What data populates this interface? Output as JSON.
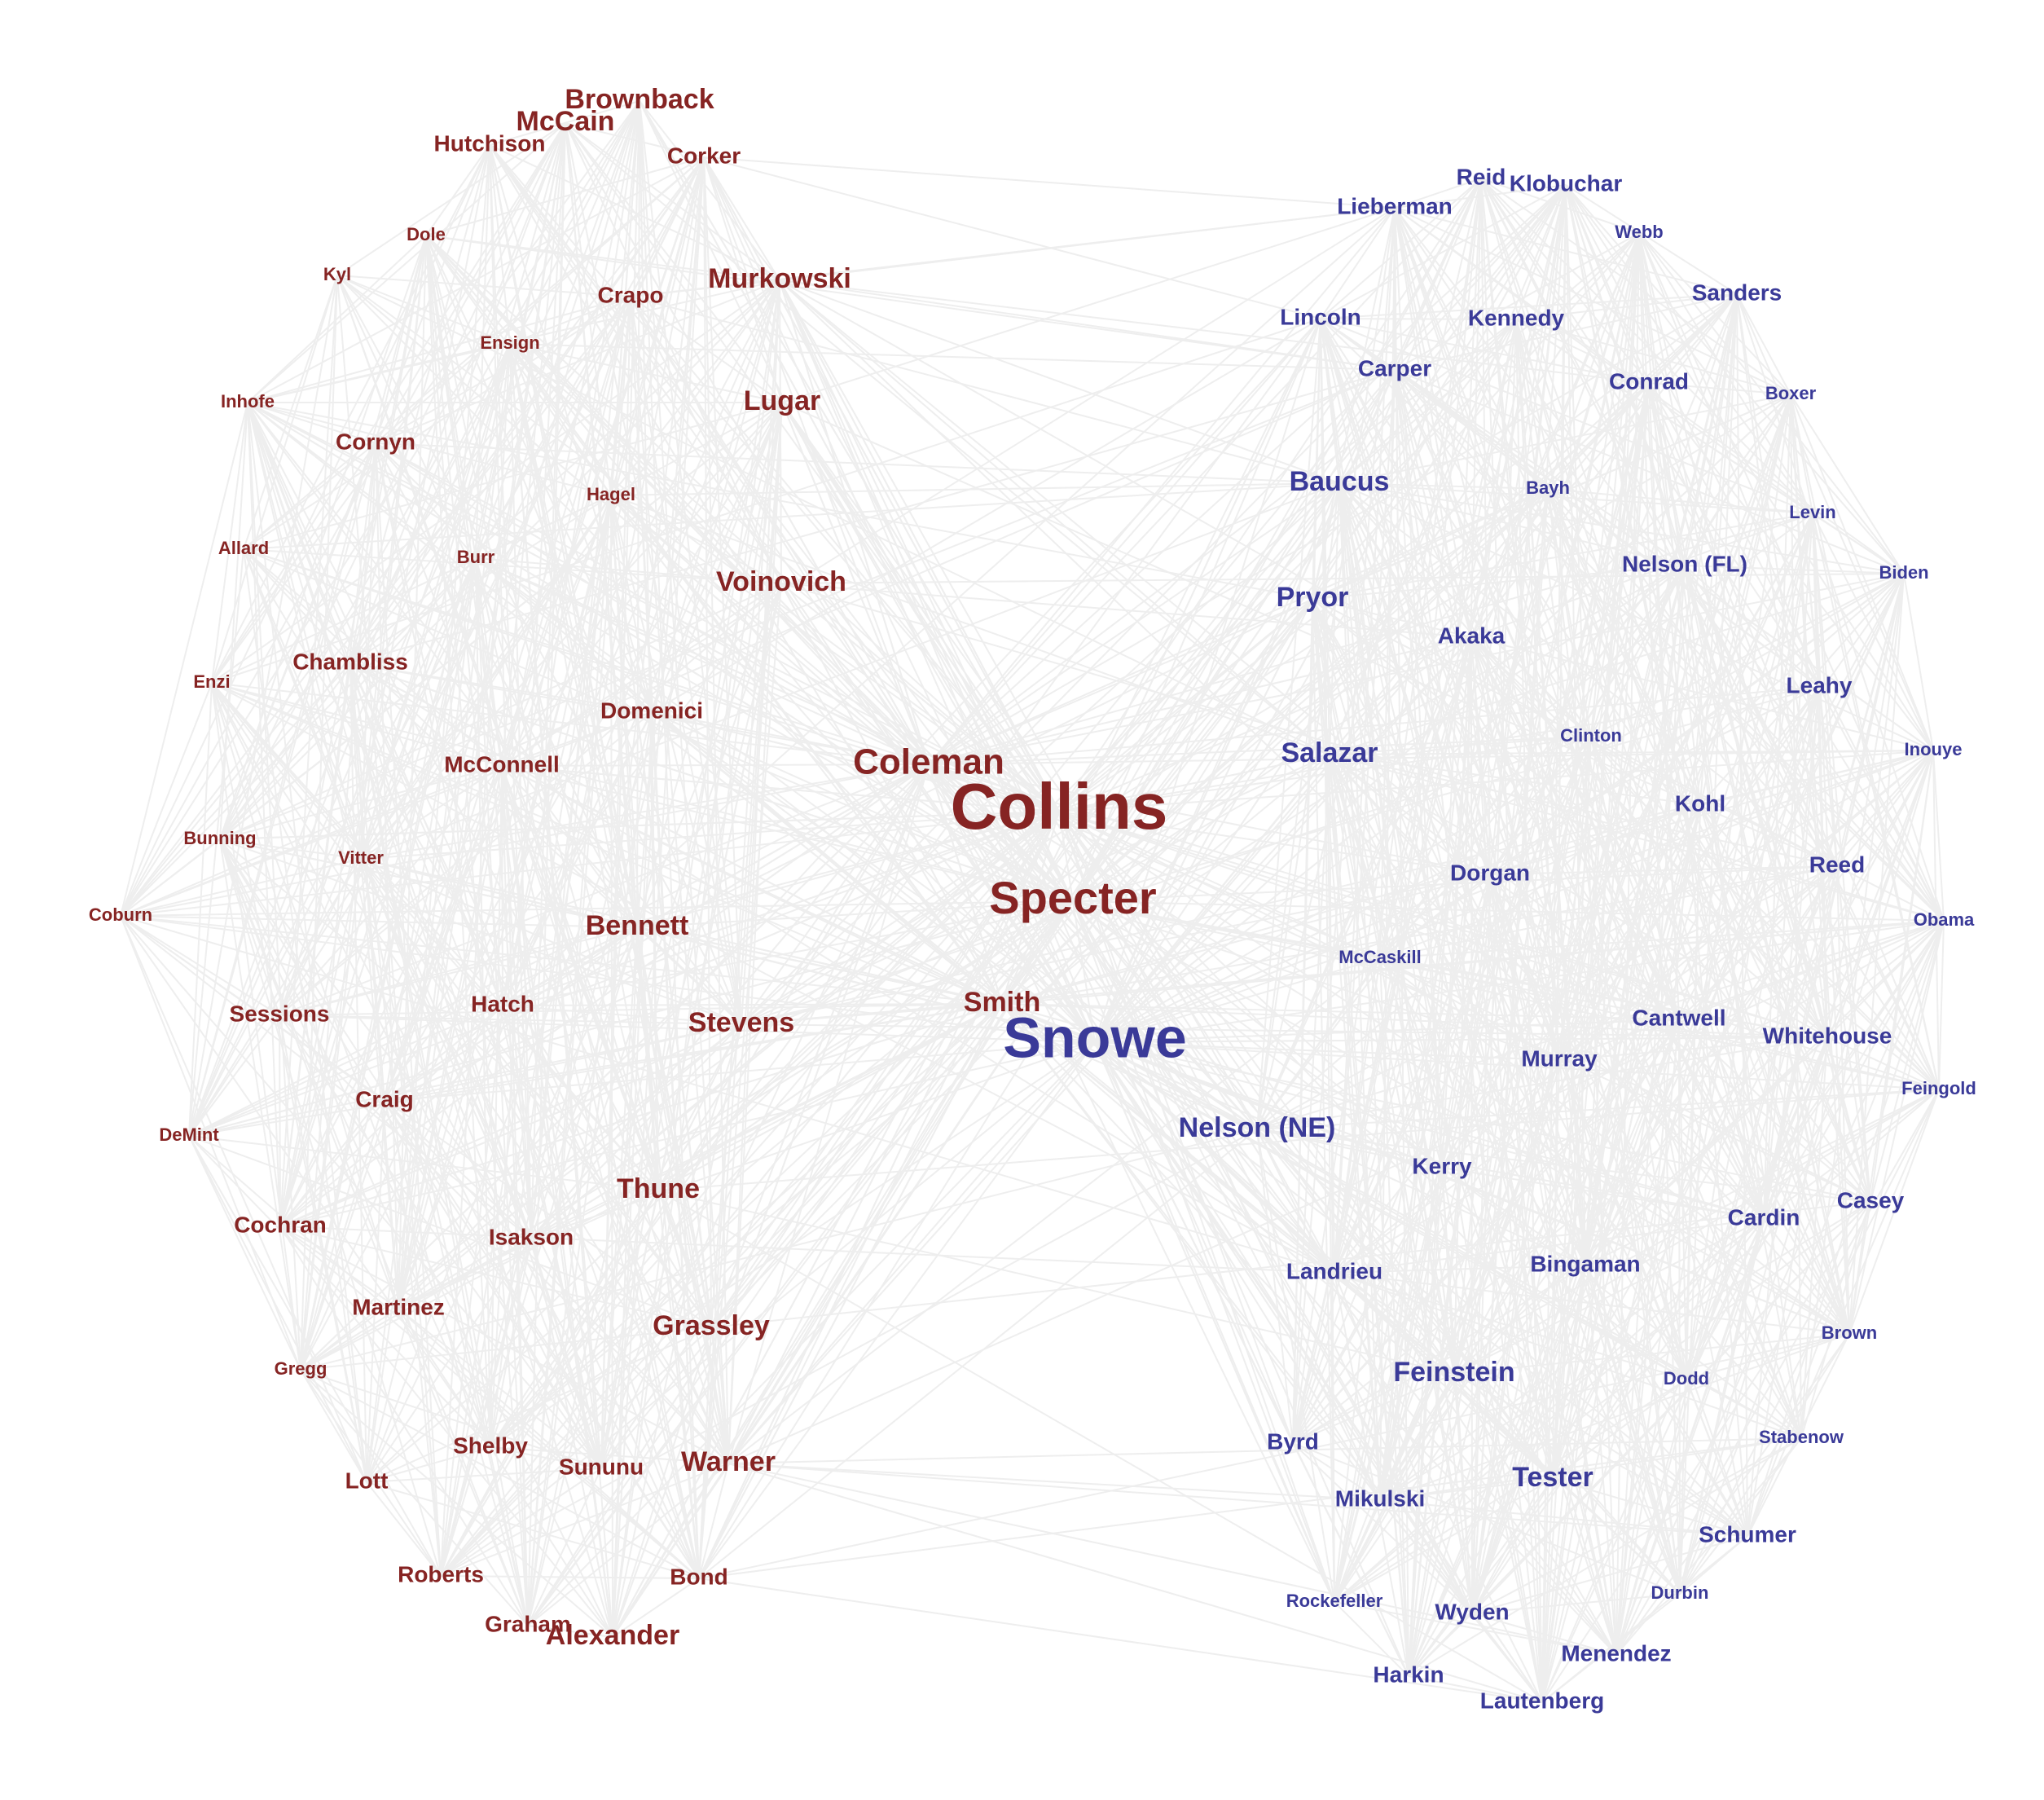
{
  "colors": {
    "republican": "#862423",
    "democrat": "#3A3A98",
    "edge": "#EEEEEE",
    "background": "#FFFFFF"
  },
  "nodes": [
    {
      "name": "Brownback",
      "party": "R",
      "size": 3
    },
    {
      "name": "McCain",
      "party": "R",
      "size": 3
    },
    {
      "name": "Hutchison",
      "party": "R",
      "size": 2
    },
    {
      "name": "Corker",
      "party": "R",
      "size": 2
    },
    {
      "name": "Dole",
      "party": "R",
      "size": 1
    },
    {
      "name": "Kyl",
      "party": "R",
      "size": 1
    },
    {
      "name": "Crapo",
      "party": "R",
      "size": 2
    },
    {
      "name": "Murkowski",
      "party": "R",
      "size": 3
    },
    {
      "name": "Ensign",
      "party": "R",
      "size": 1
    },
    {
      "name": "Inhofe",
      "party": "R",
      "size": 1
    },
    {
      "name": "Lugar",
      "party": "R",
      "size": 3
    },
    {
      "name": "Cornyn",
      "party": "R",
      "size": 2
    },
    {
      "name": "Hagel",
      "party": "R",
      "size": 1
    },
    {
      "name": "Allard",
      "party": "R",
      "size": 1
    },
    {
      "name": "Burr",
      "party": "R",
      "size": 1
    },
    {
      "name": "Voinovich",
      "party": "R",
      "size": 3
    },
    {
      "name": "Enzi",
      "party": "R",
      "size": 1
    },
    {
      "name": "Chambliss",
      "party": "R",
      "size": 2
    },
    {
      "name": "Domenici",
      "party": "R",
      "size": 2
    },
    {
      "name": "McConnell",
      "party": "R",
      "size": 2
    },
    {
      "name": "Coleman",
      "party": "R",
      "size": 4
    },
    {
      "name": "Collins",
      "party": "R",
      "size": 7
    },
    {
      "name": "Bunning",
      "party": "R",
      "size": 1
    },
    {
      "name": "Vitter",
      "party": "R",
      "size": 1
    },
    {
      "name": "Specter",
      "party": "R",
      "size": 5
    },
    {
      "name": "Coburn",
      "party": "R",
      "size": 1
    },
    {
      "name": "Bennett",
      "party": "R",
      "size": 3
    },
    {
      "name": "Smith",
      "party": "R",
      "size": 3
    },
    {
      "name": "Sessions",
      "party": "R",
      "size": 2
    },
    {
      "name": "Hatch",
      "party": "R",
      "size": 2
    },
    {
      "name": "Stevens",
      "party": "R",
      "size": 3
    },
    {
      "name": "Craig",
      "party": "R",
      "size": 2
    },
    {
      "name": "DeMint",
      "party": "R",
      "size": 1
    },
    {
      "name": "Thune",
      "party": "R",
      "size": 3
    },
    {
      "name": "Cochran",
      "party": "R",
      "size": 2
    },
    {
      "name": "Isakson",
      "party": "R",
      "size": 2
    },
    {
      "name": "Martinez",
      "party": "R",
      "size": 2
    },
    {
      "name": "Grassley",
      "party": "R",
      "size": 3
    },
    {
      "name": "Gregg",
      "party": "R",
      "size": 1
    },
    {
      "name": "Shelby",
      "party": "R",
      "size": 2
    },
    {
      "name": "Sununu",
      "party": "R",
      "size": 2
    },
    {
      "name": "Warner",
      "party": "R",
      "size": 3
    },
    {
      "name": "Lott",
      "party": "R",
      "size": 2
    },
    {
      "name": "Roberts",
      "party": "R",
      "size": 2
    },
    {
      "name": "Bond",
      "party": "R",
      "size": 2
    },
    {
      "name": "Graham",
      "party": "R",
      "size": 2
    },
    {
      "name": "Alexander",
      "party": "R",
      "size": 3
    },
    {
      "name": "Reid",
      "party": "D",
      "size": 2
    },
    {
      "name": "Klobuchar",
      "party": "D",
      "size": 2
    },
    {
      "name": "Lieberman",
      "party": "D",
      "size": 2
    },
    {
      "name": "Webb",
      "party": "D",
      "size": 1
    },
    {
      "name": "Sanders",
      "party": "D",
      "size": 2
    },
    {
      "name": "Lincoln",
      "party": "D",
      "size": 2
    },
    {
      "name": "Kennedy",
      "party": "D",
      "size": 2
    },
    {
      "name": "Carper",
      "party": "D",
      "size": 2
    },
    {
      "name": "Conrad",
      "party": "D",
      "size": 2
    },
    {
      "name": "Boxer",
      "party": "D",
      "size": 1
    },
    {
      "name": "Baucus",
      "party": "D",
      "size": 3
    },
    {
      "name": "Bayh",
      "party": "D",
      "size": 1
    },
    {
      "name": "Levin",
      "party": "D",
      "size": 1
    },
    {
      "name": "Nelson (FL)",
      "party": "D",
      "size": 2
    },
    {
      "name": "Biden",
      "party": "D",
      "size": 1
    },
    {
      "name": "Pryor",
      "party": "D",
      "size": 3
    },
    {
      "name": "Akaka",
      "party": "D",
      "size": 2
    },
    {
      "name": "Leahy",
      "party": "D",
      "size": 2
    },
    {
      "name": "Clinton",
      "party": "D",
      "size": 1
    },
    {
      "name": "Salazar",
      "party": "D",
      "size": 3
    },
    {
      "name": "Inouye",
      "party": "D",
      "size": 1
    },
    {
      "name": "Kohl",
      "party": "D",
      "size": 2
    },
    {
      "name": "Reed",
      "party": "D",
      "size": 2
    },
    {
      "name": "Dorgan",
      "party": "D",
      "size": 2
    },
    {
      "name": "Obama",
      "party": "D",
      "size": 1
    },
    {
      "name": "McCaskill",
      "party": "D",
      "size": 1
    },
    {
      "name": "Cantwell",
      "party": "D",
      "size": 2
    },
    {
      "name": "Whitehouse",
      "party": "D",
      "size": 2
    },
    {
      "name": "Murray",
      "party": "D",
      "size": 2
    },
    {
      "name": "Snowe",
      "party": "D",
      "size": 6
    },
    {
      "name": "Feingold",
      "party": "D",
      "size": 1
    },
    {
      "name": "Nelson (NE)",
      "party": "D",
      "size": 3
    },
    {
      "name": "Kerry",
      "party": "D",
      "size": 2
    },
    {
      "name": "Casey",
      "party": "D",
      "size": 2
    },
    {
      "name": "Cardin",
      "party": "D",
      "size": 2
    },
    {
      "name": "Landrieu",
      "party": "D",
      "size": 2
    },
    {
      "name": "Bingaman",
      "party": "D",
      "size": 2
    },
    {
      "name": "Brown",
      "party": "D",
      "size": 1
    },
    {
      "name": "Feinstein",
      "party": "D",
      "size": 3
    },
    {
      "name": "Dodd",
      "party": "D",
      "size": 1
    },
    {
      "name": "Stabenow",
      "party": "D",
      "size": 1
    },
    {
      "name": "Byrd",
      "party": "D",
      "size": 2
    },
    {
      "name": "Mikulski",
      "party": "D",
      "size": 2
    },
    {
      "name": "Tester",
      "party": "D",
      "size": 3
    },
    {
      "name": "Schumer",
      "party": "D",
      "size": 2
    },
    {
      "name": "Rockefeller",
      "party": "D",
      "size": 1
    },
    {
      "name": "Durbin",
      "party": "D",
      "size": 1
    },
    {
      "name": "Wyden",
      "party": "D",
      "size": 2
    },
    {
      "name": "Menendez",
      "party": "D",
      "size": 2
    },
    {
      "name": "Harkin",
      "party": "D",
      "size": 2
    },
    {
      "name": "Lautenberg",
      "party": "D",
      "size": 2
    }
  ]
}
